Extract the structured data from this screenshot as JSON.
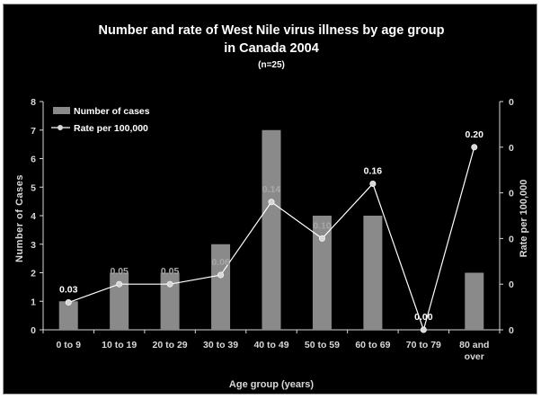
{
  "chart_data": {
    "type": "bar",
    "title_line1": "Number and rate of West Nile virus illness by age group",
    "title_line2": "in Canada 2004",
    "subtitle": "(n=25)",
    "xlabel": "Age group (years)",
    "ylabel_left": "Number of Cases",
    "ylabel_right": "Rate per 100,000",
    "ylim_left": [
      0,
      8
    ],
    "y_ticks_left": [
      "0",
      "1",
      "2",
      "3",
      "4",
      "5",
      "6",
      "7",
      "8"
    ],
    "y_ticks_right": [
      "0",
      "0",
      "0",
      "0",
      "0",
      "0"
    ],
    "ylim_right": [
      0,
      0.25
    ],
    "categories": [
      [
        "0 to 9"
      ],
      [
        "10 to 19"
      ],
      [
        "20 to 29"
      ],
      [
        "30 to 39"
      ],
      [
        "40 to 49"
      ],
      [
        "50 to 59"
      ],
      [
        "60 to 69"
      ],
      [
        "70 to 79"
      ],
      [
        "80 and",
        "over"
      ]
    ],
    "series": [
      {
        "name": "Number of cases",
        "kind": "bar",
        "color": "#8a8a8a",
        "values": [
          1,
          2,
          2,
          3,
          7,
          4,
          4,
          0,
          2
        ]
      },
      {
        "name": "Rate per 100,000",
        "kind": "line",
        "color": "#ffffff",
        "values": [
          0.03,
          0.05,
          0.05,
          0.06,
          0.14,
          0.1,
          0.16,
          0.0,
          0.2
        ],
        "labels": [
          "0.03",
          "0.05",
          "0.05",
          "0.06",
          "0.14",
          "0.10",
          "0.16",
          "0.00",
          "0.20"
        ]
      }
    ],
    "legend_position": "top-left",
    "grid": false,
    "colors": {
      "background": "#000000",
      "axis": "#d8d8d8",
      "text": "#ffffff",
      "label_on_bar": "#a8a8a8"
    }
  }
}
